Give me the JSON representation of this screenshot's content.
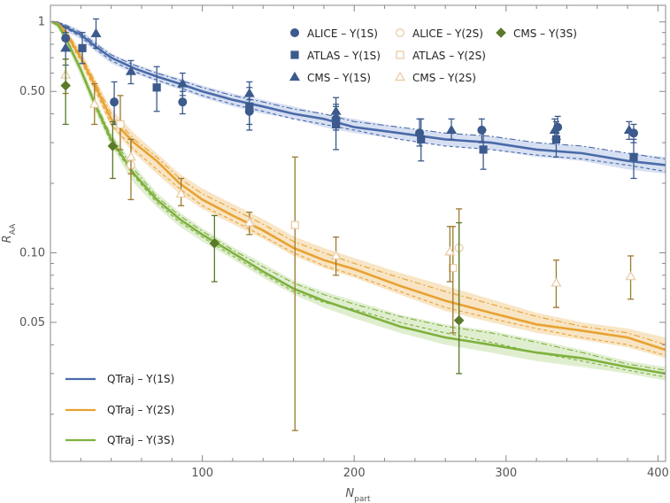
{
  "chart_data": {
    "type": "line",
    "title": "",
    "xlabel": "N",
    "xlabel_sub": "part",
    "ylabel": "R",
    "ylabel_sub": "AA",
    "xlim": [
      0,
      405
    ],
    "ylim": [
      0.0125,
      1.18
    ],
    "y_scale": "log",
    "x_ticks": [
      100,
      200,
      300,
      400
    ],
    "y_ticks": [
      {
        "value": 1,
        "label": "1"
      },
      {
        "value": 0.5,
        "label": "0.50"
      },
      {
        "value": 0.1,
        "label": "0.10"
      },
      {
        "value": 0.05,
        "label": "0.05"
      }
    ],
    "grid": false,
    "legend_points_placement": "top-right",
    "legend_lines_placement": "bottom-left",
    "colors": {
      "blue": "#4a6aa8",
      "blue_band": "#c9d6ee",
      "orange": "#e8a232",
      "orange_band": "#f6dcb2",
      "green": "#7fb13e",
      "green_band": "#d6e8c0",
      "alice": "#3c5a8c",
      "atlas": "#3c5a8c",
      "cms": "#3c5a8c",
      "excited_err": "#9b7a2e",
      "cms3s": "#5a7a2a"
    },
    "theory": [
      {
        "name": "QTraj – Υ(1S)",
        "color": "#4a6aa8",
        "band": "#c9d6ee",
        "x": [
          1,
          5,
          10,
          20,
          30,
          40,
          55,
          70,
          85,
          100,
          120,
          140,
          160,
          180,
          200,
          230,
          260,
          290,
          320,
          350,
          380,
          405
        ],
        "y": [
          1.0,
          0.99,
          0.95,
          0.88,
          0.78,
          0.7,
          0.63,
          0.58,
          0.54,
          0.5,
          0.46,
          0.43,
          0.4,
          0.38,
          0.35,
          0.33,
          0.31,
          0.3,
          0.28,
          0.27,
          0.25,
          0.24
        ],
        "band_lo": [
          0.98,
          0.96,
          0.91,
          0.84,
          0.74,
          0.66,
          0.6,
          0.55,
          0.51,
          0.47,
          0.43,
          0.4,
          0.38,
          0.35,
          0.33,
          0.31,
          0.29,
          0.28,
          0.26,
          0.25,
          0.23,
          0.22
        ],
        "band_hi": [
          1.0,
          1.0,
          0.98,
          0.92,
          0.82,
          0.73,
          0.66,
          0.61,
          0.57,
          0.53,
          0.49,
          0.46,
          0.43,
          0.4,
          0.38,
          0.35,
          0.33,
          0.32,
          0.3,
          0.29,
          0.27,
          0.26
        ],
        "dashed": [
          1.0,
          0.98,
          0.94,
          0.86,
          0.76,
          0.68,
          0.61,
          0.56,
          0.52,
          0.48,
          0.44,
          0.41,
          0.38,
          0.36,
          0.34,
          0.31,
          0.29,
          0.28,
          0.265,
          0.255,
          0.24,
          0.225
        ],
        "dotdash": [
          1.0,
          1.0,
          0.97,
          0.9,
          0.8,
          0.72,
          0.65,
          0.6,
          0.56,
          0.52,
          0.48,
          0.45,
          0.42,
          0.4,
          0.37,
          0.35,
          0.33,
          0.32,
          0.3,
          0.29,
          0.27,
          0.255
        ]
      },
      {
        "name": "QTraj – Υ(2S)",
        "color": "#e8a232",
        "band": "#f6dcb2",
        "x": [
          1,
          5,
          10,
          20,
          30,
          40,
          55,
          70,
          85,
          100,
          120,
          140,
          160,
          180,
          200,
          230,
          260,
          290,
          320,
          350,
          380,
          405
        ],
        "y": [
          1.0,
          0.98,
          0.9,
          0.7,
          0.52,
          0.38,
          0.3,
          0.25,
          0.2,
          0.17,
          0.145,
          0.125,
          0.105,
          0.093,
          0.085,
          0.072,
          0.062,
          0.055,
          0.049,
          0.046,
          0.043,
          0.038
        ],
        "band_lo": [
          0.98,
          0.95,
          0.86,
          0.66,
          0.48,
          0.35,
          0.27,
          0.22,
          0.18,
          0.155,
          0.133,
          0.115,
          0.097,
          0.086,
          0.078,
          0.066,
          0.056,
          0.05,
          0.045,
          0.042,
          0.039,
          0.035
        ],
        "band_hi": [
          1.0,
          1.0,
          0.94,
          0.75,
          0.56,
          0.42,
          0.33,
          0.27,
          0.22,
          0.19,
          0.163,
          0.14,
          0.118,
          0.105,
          0.095,
          0.082,
          0.072,
          0.063,
          0.055,
          0.05,
          0.047,
          0.043
        ],
        "dashed": [
          1.0,
          0.97,
          0.88,
          0.68,
          0.5,
          0.36,
          0.28,
          0.23,
          0.19,
          0.16,
          0.138,
          0.118,
          0.1,
          0.088,
          0.08,
          0.068,
          0.058,
          0.052,
          0.047,
          0.043,
          0.04,
          0.036
        ],
        "dotdash": [
          1.0,
          0.99,
          0.92,
          0.72,
          0.54,
          0.4,
          0.31,
          0.26,
          0.21,
          0.18,
          0.155,
          0.133,
          0.112,
          0.1,
          0.09,
          0.078,
          0.068,
          0.06,
          0.053,
          0.048,
          0.045,
          0.04
        ]
      },
      {
        "name": "QTraj – Υ(3S)",
        "color": "#7fb13e",
        "band": "#d6e8c0",
        "x": [
          1,
          5,
          10,
          20,
          30,
          40,
          55,
          70,
          85,
          100,
          120,
          140,
          160,
          180,
          200,
          230,
          260,
          290,
          320,
          350,
          380,
          405
        ],
        "y": [
          1.0,
          0.97,
          0.85,
          0.62,
          0.43,
          0.31,
          0.22,
          0.17,
          0.14,
          0.12,
          0.1,
          0.083,
          0.07,
          0.062,
          0.056,
          0.048,
          0.043,
          0.04,
          0.037,
          0.035,
          0.032,
          0.03
        ],
        "band_lo": [
          0.98,
          0.94,
          0.81,
          0.58,
          0.4,
          0.29,
          0.2,
          0.158,
          0.13,
          0.112,
          0.094,
          0.078,
          0.066,
          0.058,
          0.052,
          0.045,
          0.04,
          0.037,
          0.034,
          0.032,
          0.03,
          0.028
        ],
        "band_hi": [
          1.0,
          1.0,
          0.88,
          0.66,
          0.46,
          0.33,
          0.24,
          0.182,
          0.15,
          0.128,
          0.106,
          0.09,
          0.076,
          0.068,
          0.062,
          0.054,
          0.049,
          0.046,
          0.042,
          0.038,
          0.034,
          0.032
        ],
        "dashed": [
          1.0,
          0.96,
          0.84,
          0.61,
          0.42,
          0.3,
          0.215,
          0.165,
          0.136,
          0.117,
          0.097,
          0.081,
          0.068,
          0.061,
          0.057,
          0.05,
          0.045,
          0.041,
          0.037,
          0.034,
          0.031,
          0.029
        ],
        "dotdash": [
          1.0,
          0.98,
          0.86,
          0.63,
          0.44,
          0.32,
          0.23,
          0.175,
          0.145,
          0.124,
          0.103,
          0.087,
          0.074,
          0.066,
          0.06,
          0.053,
          0.048,
          0.045,
          0.041,
          0.037,
          0.033,
          0.031
        ]
      }
    ],
    "data_series": [
      {
        "name": "ALICE – Υ(1S)",
        "marker": "circle",
        "filled": true,
        "color": "#3c5a8c",
        "err_color": "#3c5a8c",
        "points": [
          {
            "x": 10,
            "y": 0.85,
            "lo": 0.75,
            "hi": 0.95
          },
          {
            "x": 42,
            "y": 0.45,
            "lo": 0.36,
            "hi": 0.55
          },
          {
            "x": 87,
            "y": 0.45,
            "lo": 0.4,
            "hi": 0.5
          },
          {
            "x": 131,
            "y": 0.41,
            "lo": 0.36,
            "hi": 0.46
          },
          {
            "x": 188,
            "y": 0.38,
            "lo": 0.34,
            "hi": 0.43
          },
          {
            "x": 243,
            "y": 0.33,
            "lo": 0.29,
            "hi": 0.38
          },
          {
            "x": 284,
            "y": 0.34,
            "lo": 0.3,
            "hi": 0.38
          },
          {
            "x": 334,
            "y": 0.35,
            "lo": 0.31,
            "hi": 0.39
          },
          {
            "x": 384,
            "y": 0.33,
            "lo": 0.3,
            "hi": 0.36
          }
        ]
      },
      {
        "name": "ATLAS – Υ(1S)",
        "marker": "square",
        "filled": true,
        "color": "#3c5a8c",
        "err_color": "#3c5a8c",
        "points": [
          {
            "x": 21,
            "y": 0.77,
            "lo": 0.66,
            "hi": 0.9
          },
          {
            "x": 70,
            "y": 0.52,
            "lo": 0.41,
            "hi": 0.64
          },
          {
            "x": 131,
            "y": 0.43,
            "lo": 0.34,
            "hi": 0.52
          },
          {
            "x": 188,
            "y": 0.36,
            "lo": 0.28,
            "hi": 0.44
          },
          {
            "x": 244,
            "y": 0.31,
            "lo": 0.25,
            "hi": 0.38
          },
          {
            "x": 285,
            "y": 0.28,
            "lo": 0.23,
            "hi": 0.34
          },
          {
            "x": 333,
            "y": 0.31,
            "lo": 0.26,
            "hi": 0.37
          },
          {
            "x": 384,
            "y": 0.26,
            "lo": 0.21,
            "hi": 0.31
          }
        ]
      },
      {
        "name": "CMS – Υ(1S)",
        "marker": "triangle",
        "filled": true,
        "color": "#3c5a8c",
        "err_color": "#3c5a8c",
        "points": [
          {
            "x": 10,
            "y": 0.77,
            "lo": 0.65,
            "hi": 0.9
          },
          {
            "x": 30,
            "y": 0.89,
            "lo": 0.77,
            "hi": 1.03
          },
          {
            "x": 53,
            "y": 0.61,
            "lo": 0.54,
            "hi": 0.68
          },
          {
            "x": 87,
            "y": 0.54,
            "lo": 0.48,
            "hi": 0.6
          },
          {
            "x": 131,
            "y": 0.49,
            "lo": 0.43,
            "hi": 0.55
          },
          {
            "x": 188,
            "y": 0.41,
            "lo": 0.35,
            "hi": 0.47
          },
          {
            "x": 264,
            "y": 0.34,
            "lo": 0.31,
            "hi": 0.38
          },
          {
            "x": 332,
            "y": 0.34,
            "lo": 0.31,
            "hi": 0.38
          },
          {
            "x": 381,
            "y": 0.34,
            "lo": 0.31,
            "hi": 0.37
          }
        ]
      },
      {
        "name": "ALICE – Υ(2S)",
        "marker": "circle",
        "filled": false,
        "color": "#e8c9a0",
        "err_color": "#9b7a2e",
        "points": [
          {
            "x": 53,
            "y": 0.24,
            "lo": 0.17,
            "hi": 0.31
          },
          {
            "x": 269,
            "y": 0.105,
            "lo": 0.05,
            "hi": 0.155
          }
        ]
      },
      {
        "name": "ATLAS – Υ(2S)",
        "marker": "square",
        "filled": false,
        "color": "#e8c9a0",
        "err_color": "#9b7a2e",
        "points": [
          {
            "x": 46,
            "y": 0.36,
            "lo": 0.28,
            "hi": 0.48
          },
          {
            "x": 161,
            "y": 0.132,
            "lo": 0.017,
            "hi": 0.26
          },
          {
            "x": 265,
            "y": 0.086,
            "lo": 0.045,
            "hi": 0.13
          }
        ]
      },
      {
        "name": "CMS – Υ(2S)",
        "marker": "triangle",
        "filled": false,
        "color": "#e8c9a0",
        "err_color": "#9b7a2e",
        "points": [
          {
            "x": 10,
            "y": 0.59,
            "lo": 0.49,
            "hi": 0.69
          },
          {
            "x": 29,
            "y": 0.44,
            "lo": 0.36,
            "hi": 0.54
          },
          {
            "x": 53,
            "y": 0.26,
            "lo": 0.22,
            "hi": 0.31
          },
          {
            "x": 86,
            "y": 0.18,
            "lo": 0.16,
            "hi": 0.21
          },
          {
            "x": 131,
            "y": 0.135,
            "lo": 0.12,
            "hi": 0.15
          },
          {
            "x": 188,
            "y": 0.097,
            "lo": 0.08,
            "hi": 0.117
          },
          {
            "x": 263,
            "y": 0.101,
            "lo": 0.075,
            "hi": 0.13
          },
          {
            "x": 333,
            "y": 0.074,
            "lo": 0.058,
            "hi": 0.093
          },
          {
            "x": 382,
            "y": 0.079,
            "lo": 0.063,
            "hi": 0.097
          }
        ]
      },
      {
        "name": "CMS – Υ(3S)",
        "marker": "diamond",
        "filled": true,
        "color": "#5a7a2a",
        "err_color": "#5a7a2a",
        "points": [
          {
            "x": 10,
            "y": 0.53,
            "lo": 0.36,
            "hi": 0.69
          },
          {
            "x": 41,
            "y": 0.29,
            "lo": 0.21,
            "hi": 0.37
          },
          {
            "x": 108,
            "y": 0.11,
            "lo": 0.075,
            "hi": 0.145
          },
          {
            "x": 269,
            "y": 0.051,
            "lo": 0.03,
            "hi": 0.135
          }
        ]
      }
    ],
    "legend_points": [
      {
        "label": "ALICE – Υ(1S)",
        "series": 0
      },
      {
        "label": "ALICE – Υ(2S)",
        "series": 3
      },
      {
        "label": "CMS – Υ(3S)",
        "series": 6
      },
      {
        "label": "ATLAS – Υ(1S)",
        "series": 1
      },
      {
        "label": "ATLAS – Υ(2S)",
        "series": 4
      },
      {
        "label": "CMS – Υ(1S)",
        "series": 2
      },
      {
        "label": "CMS – Υ(2S)",
        "series": 5
      }
    ],
    "legend_lines": [
      {
        "label": "QTraj – Υ(1S)",
        "series": 0
      },
      {
        "label": "QTraj – Υ(2S)",
        "series": 1
      },
      {
        "label": "QTraj – Υ(3S)",
        "series": 2
      }
    ]
  }
}
